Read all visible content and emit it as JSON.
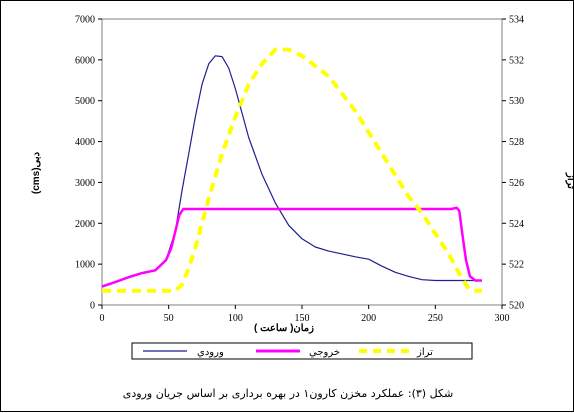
{
  "chart_data": {
    "type": "line",
    "caption": "شکل (۳): عملکرد مخزن کارون۱ در بهره برداری بر اساس جریان ورودی",
    "xlabel": "زمان( ساعت )",
    "ylabel_left": "(cms)دبی",
    "ylabel_right": "تراز",
    "x_range": [
      0,
      300
    ],
    "x_ticks": [
      0,
      50,
      100,
      150,
      200,
      250,
      300
    ],
    "y_left_range": [
      0,
      7000
    ],
    "y_left_ticks": [
      0,
      1000,
      2000,
      3000,
      4000,
      5000,
      6000,
      7000
    ],
    "y_right_range": [
      520,
      534
    ],
    "y_right_ticks": [
      520,
      522,
      524,
      526,
      528,
      530,
      532,
      534
    ],
    "legend_position": "bottom",
    "series": [
      {
        "name": "ورودي",
        "axis": "left",
        "color": "#1f1f8f",
        "dash": "solid",
        "x": [
          0,
          10,
          20,
          30,
          40,
          48,
          55,
          60,
          65,
          70,
          75,
          80,
          85,
          90,
          95,
          100,
          105,
          110,
          120,
          130,
          140,
          150,
          160,
          170,
          180,
          190,
          200,
          210,
          220,
          230,
          240,
          250,
          260,
          270,
          280,
          285
        ],
        "y": [
          450,
          560,
          680,
          780,
          850,
          1100,
          1800,
          2800,
          3700,
          4600,
          5400,
          5900,
          6100,
          6080,
          5800,
          5300,
          4700,
          4100,
          3200,
          2500,
          1950,
          1620,
          1420,
          1320,
          1250,
          1180,
          1120,
          950,
          800,
          700,
          620,
          600,
          600,
          600,
          600,
          600
        ]
      },
      {
        "name": "خروجي",
        "axis": "left",
        "color": "#ff00ff",
        "dash": "solid",
        "x": [
          0,
          10,
          20,
          30,
          40,
          48,
          52,
          55,
          58,
          61,
          65,
          100,
          150,
          200,
          250,
          262,
          266,
          268,
          270,
          273,
          276,
          280,
          285
        ],
        "y": [
          450,
          560,
          680,
          780,
          850,
          1100,
          1400,
          1800,
          2200,
          2350,
          2350,
          2350,
          2350,
          2350,
          2350,
          2350,
          2380,
          2300,
          1800,
          1100,
          700,
          600,
          600
        ]
      },
      {
        "name": "تراز",
        "axis": "right",
        "color": "#ffff00",
        "dash": "dashed",
        "x": [
          0,
          20,
          40,
          55,
          60,
          65,
          70,
          80,
          90,
          100,
          110,
          120,
          130,
          140,
          150,
          170,
          190,
          210,
          230,
          240,
          250,
          260,
          265,
          270,
          275,
          280,
          285
        ],
        "y": [
          520.7,
          520.7,
          520.7,
          520.7,
          521.0,
          521.8,
          522.8,
          525.2,
          527.4,
          529.2,
          530.8,
          531.8,
          532.5,
          532.5,
          532.2,
          531.2,
          529.5,
          527.4,
          525.3,
          524.5,
          523.5,
          522.5,
          521.9,
          521.3,
          520.8,
          520.7,
          520.7
        ]
      }
    ]
  }
}
